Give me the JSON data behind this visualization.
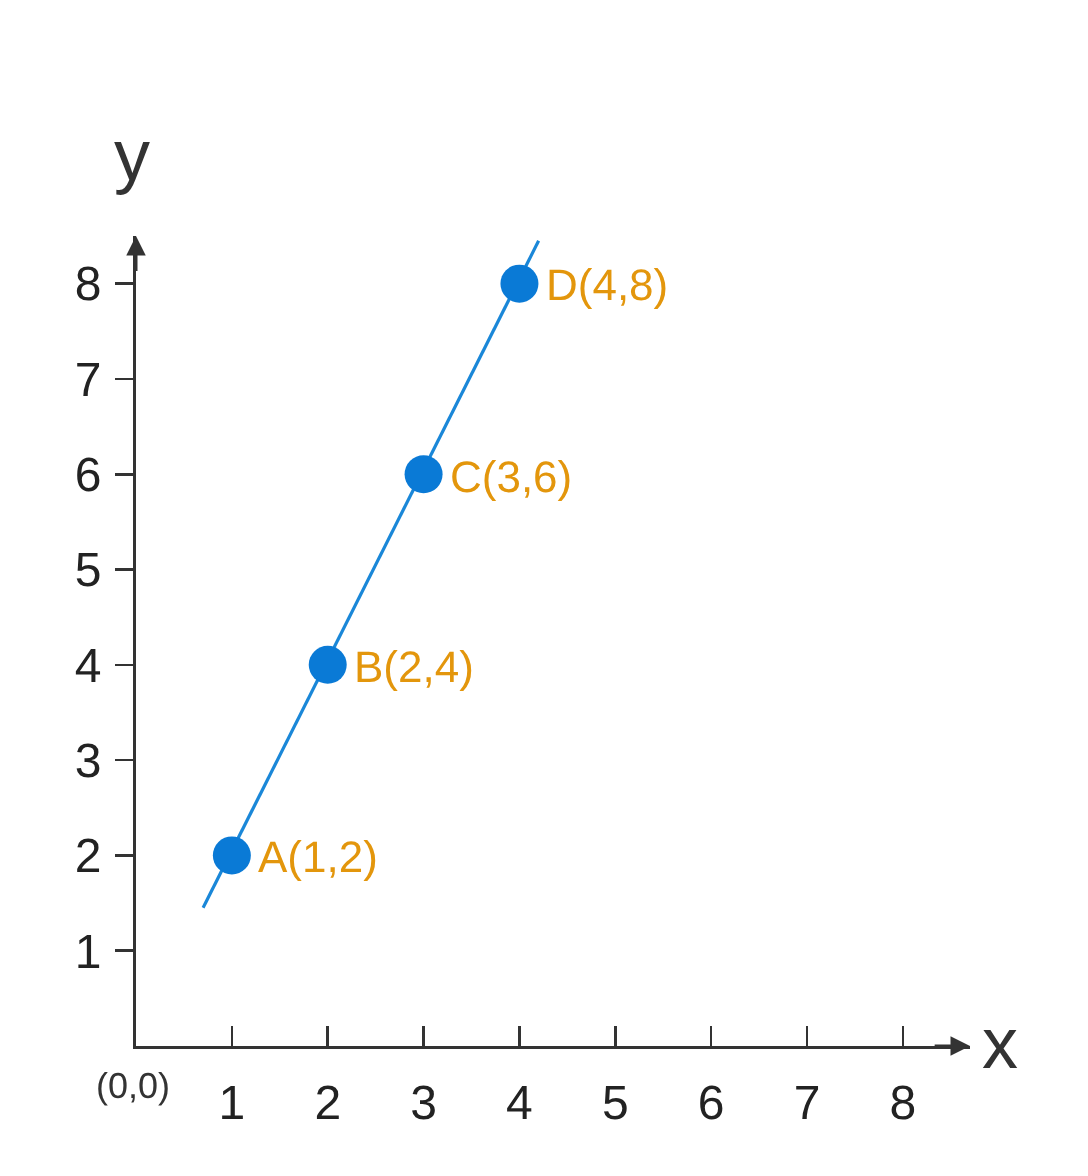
{
  "chart_data": {
    "type": "scatter",
    "xlabel": "x",
    "ylabel": "y",
    "xlim": [
      0,
      8.7
    ],
    "ylim": [
      0,
      8.5
    ],
    "xticks": [
      1,
      2,
      3,
      4,
      5,
      6,
      7,
      8
    ],
    "yticks": [
      1,
      2,
      3,
      4,
      5,
      6,
      7,
      8
    ],
    "series": [
      {
        "type": "line",
        "x": [
          0.7,
          4.2
        ],
        "values": [
          1.45,
          8.45
        ],
        "color": "#1a87d8",
        "marker": "none"
      },
      {
        "x": [
          1,
          2,
          3,
          4
        ],
        "values": [
          2,
          4,
          6,
          8
        ],
        "color": "#0a7ad6",
        "marker": "circle"
      }
    ],
    "annotations": [
      {
        "text": "A(1,2)",
        "x": 1,
        "y": 2
      },
      {
        "text": "B(2,4)",
        "x": 2,
        "y": 4
      },
      {
        "text": "C(3,6)",
        "x": 3,
        "y": 6
      },
      {
        "text": "D(4,8)",
        "x": 4,
        "y": 8
      },
      "(0,0)"
    ]
  }
}
